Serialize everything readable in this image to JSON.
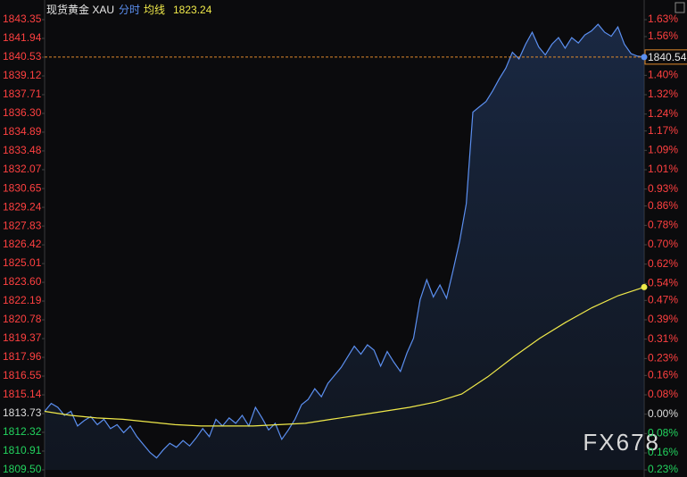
{
  "chart_data": {
    "type": "line",
    "title": "现货黄金 XAU",
    "watermark": "FX678",
    "series": [
      {
        "name": "分时",
        "color": "#5b8ff0",
        "values": [
          1813.9,
          1814.5,
          1814.2,
          1813.6,
          1813.9,
          1812.8,
          1813.2,
          1813.5,
          1812.9,
          1813.3,
          1812.6,
          1812.9,
          1812.3,
          1812.8,
          1812.0,
          1811.4,
          1810.8,
          1810.4,
          1811.0,
          1811.5,
          1811.2,
          1811.7,
          1811.3,
          1811.9,
          1812.6,
          1812.0,
          1813.3,
          1812.8,
          1813.4,
          1813.0,
          1813.6,
          1812.8,
          1814.2,
          1813.4,
          1812.5,
          1813.0,
          1811.8,
          1812.5,
          1813.3,
          1814.4,
          1814.8,
          1815.6,
          1815.0,
          1816.0,
          1816.6,
          1817.2,
          1818.0,
          1818.8,
          1818.2,
          1818.9,
          1818.5,
          1817.3,
          1818.4,
          1817.6,
          1816.9,
          1818.3,
          1819.4,
          1822.3,
          1823.8,
          1822.5,
          1823.4,
          1822.4,
          1824.5,
          1826.7,
          1829.5,
          1836.4,
          1836.8,
          1837.2,
          1838.0,
          1838.9,
          1839.7,
          1840.9,
          1840.4,
          1841.5,
          1842.4,
          1841.3,
          1840.7,
          1841.5,
          1842.0,
          1841.2,
          1842.0,
          1841.6,
          1842.2,
          1842.5,
          1843.0,
          1842.4,
          1842.1,
          1842.8,
          1841.5,
          1840.8,
          1840.6,
          1840.54
        ]
      },
      {
        "name": "均线",
        "color": "#f0e94a",
        "values": [
          1813.9,
          1813.6,
          1813.4,
          1813.3,
          1813.1,
          1812.9,
          1812.8,
          1812.8,
          1812.8,
          1812.9,
          1813.0,
          1813.3,
          1813.6,
          1813.9,
          1814.2,
          1814.6,
          1815.2,
          1816.5,
          1818.0,
          1819.4,
          1820.6,
          1821.7,
          1822.6,
          1823.24
        ]
      }
    ],
    "ylim": [
      1809.5,
      1843.35
    ],
    "yticks": [
      1843.35,
      1841.94,
      1840.53,
      1839.12,
      1837.71,
      {
        "value": 1836.3,
        "label": "1836.30"
      },
      1834.89,
      1833.48,
      1832.07,
      1830.65,
      1829.24,
      1827.83,
      1826.42,
      1825.01,
      {
        "value": 1823.6,
        "label": "1823.60"
      },
      1822.19,
      1820.78,
      1819.37,
      1817.96,
      1816.55,
      1815.14,
      1813.73,
      1812.32,
      1810.91,
      {
        "value": 1809.5,
        "label": "1809.50"
      }
    ],
    "y2lim": [
      -0.23,
      1.63
    ],
    "y2ticks": [
      {
        "value": 1.63,
        "label": "1.63%"
      },
      {
        "value": 1.56,
        "label": "1.56%"
      },
      {
        "value": 1.48,
        "label": "1.48%"
      },
      {
        "value": 1.4,
        "label": "1.40%"
      },
      {
        "value": 1.32,
        "label": "1.32%"
      },
      {
        "value": 1.24,
        "label": "1.24%"
      },
      {
        "value": 1.17,
        "label": "1.17%"
      },
      {
        "value": 1.09,
        "label": "1.09%"
      },
      {
        "value": 1.01,
        "label": "1.01%"
      },
      {
        "value": 0.93,
        "label": "0.93%"
      },
      {
        "value": 0.86,
        "label": "0.86%"
      },
      {
        "value": 0.78,
        "label": "0.78%"
      },
      {
        "value": 0.7,
        "label": "0.70%"
      },
      {
        "value": 0.62,
        "label": "0.62%"
      },
      {
        "value": 0.54,
        "label": "0.54%"
      },
      {
        "value": 0.47,
        "label": "0.47%"
      },
      {
        "value": 0.39,
        "label": "0.39%"
      },
      {
        "value": 0.31,
        "label": "0.31%"
      },
      {
        "value": 0.23,
        "label": "0.23%"
      },
      {
        "value": 0.16,
        "label": "0.16%"
      },
      {
        "value": 0.08,
        "label": "0.08%"
      },
      {
        "value": 0,
        "label": "0.00%"
      },
      {
        "value": -0.08,
        "label": "0.08%"
      },
      {
        "value": -0.16,
        "label": "0.16%"
      },
      {
        "value": -0.23,
        "label": "0.23%"
      }
    ],
    "grid": false,
    "colors": {
      "up": "#ff4040",
      "down": "#22d35e",
      "flat": "#dddddd",
      "last_price_line": "#e08a2c"
    }
  }
}
